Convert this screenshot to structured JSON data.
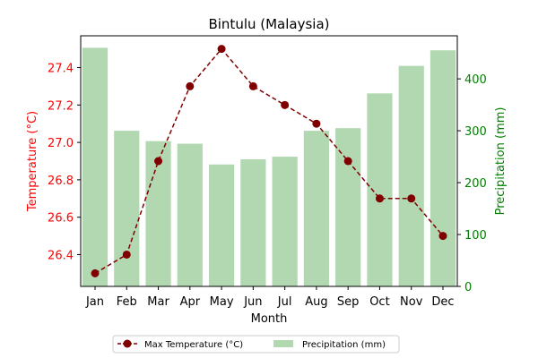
{
  "chart_data": {
    "type": "bar+line",
    "title": "Bintulu (Malaysia)",
    "xlabel": "Month",
    "categories": [
      "Jan",
      "Feb",
      "Mar",
      "Apr",
      "May",
      "Jun",
      "Jul",
      "Aug",
      "Sep",
      "Oct",
      "Nov",
      "Dec"
    ],
    "series": [
      {
        "name": "Max Temperature (°C)",
        "type": "line",
        "axis": "left",
        "values": [
          26.3,
          26.4,
          26.9,
          27.3,
          27.5,
          27.3,
          27.2,
          27.1,
          26.9,
          26.7,
          26.7,
          26.5
        ],
        "color": "#800000"
      },
      {
        "name": "Precipitation (mm)",
        "type": "bar",
        "axis": "right",
        "values": [
          460,
          300,
          280,
          275,
          235,
          245,
          250,
          300,
          305,
          372,
          425,
          455
        ],
        "color": "#b2d8b2"
      }
    ],
    "y_left": {
      "label": "Temperature (°C)",
      "ticks": [
        26.4,
        26.6,
        26.8,
        27.0,
        27.2,
        27.4
      ],
      "tick_labels": [
        "26.4",
        "26.6",
        "26.8",
        "27.0",
        "27.2",
        "27.4"
      ],
      "range": [
        26.23,
        27.57
      ],
      "color": "#ff0000"
    },
    "y_right": {
      "label": "Precipitation (mm)",
      "ticks": [
        0,
        100,
        200,
        300,
        400
      ],
      "tick_labels": [
        "0",
        "100",
        "200",
        "300",
        "400"
      ],
      "range": [
        0,
        483
      ],
      "color": "#008000"
    },
    "legend": {
      "placement": "bottom-center",
      "entries": [
        "Max Temperature (°C)",
        "Precipitation (mm)"
      ]
    },
    "grid": false
  }
}
